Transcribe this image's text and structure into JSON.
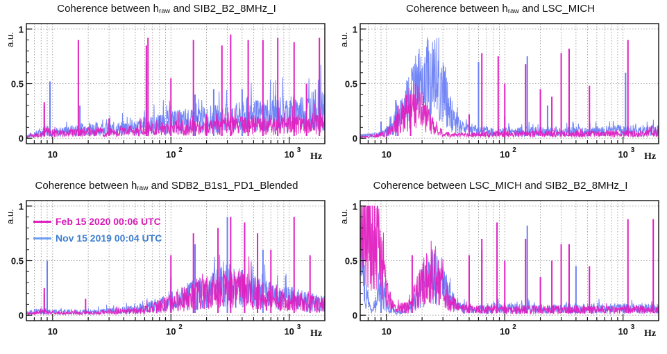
{
  "colors": {
    "feb": "#e020c0",
    "nov": "#6b7ff5",
    "grid": "#888888",
    "axis": "#111111"
  },
  "legend": [
    {
      "name": "feb",
      "label": "Feb 15 2020 00:06 UTC",
      "color": "#e020c0",
      "text_color": "#d81bb6"
    },
    {
      "name": "nov",
      "label": "Nov 15 2019 00:04 UTC",
      "color": "#6b9ff5",
      "text_color": "#3d7fd0"
    }
  ],
  "chart_data": [
    {
      "type": "line",
      "title_prefix": "Coherence between h",
      "title_sub": "raw",
      "title_suffix": " and SIB2_B2_8MHz_I",
      "ylabel": "a.u.",
      "xlabel": "Hz",
      "xscale": "log",
      "xlim": [
        6,
        2000
      ],
      "ylim": [
        -0.05,
        1.05
      ],
      "yticks": [
        "0",
        "0.5",
        "1"
      ],
      "xticks": [
        "10",
        "10",
        "10"
      ],
      "xtick_exp": [
        "",
        "2",
        "3"
      ],
      "grid": true,
      "series": [
        {
          "key": "nov",
          "x": [
            6,
            8,
            9,
            10,
            15,
            20,
            30,
            50,
            70,
            100,
            150,
            200,
            300,
            500,
            700,
            1000,
            1500,
            2000
          ],
          "y": [
            0.02,
            0.05,
            0.08,
            0.05,
            0.07,
            0.09,
            0.08,
            0.1,
            0.12,
            0.15,
            0.15,
            0.17,
            0.18,
            0.2,
            0.22,
            0.23,
            0.25,
            0.27
          ],
          "peaks": [
            [
              8.5,
              0.3
            ],
            [
              9.5,
              0.52
            ],
            [
              17,
              0.3
            ],
            [
              62,
              0.7
            ],
            [
              100,
              0.3
            ],
            [
              160,
              0.4
            ],
            [
              230,
              0.45
            ],
            [
              400,
              0.45
            ]
          ]
        },
        {
          "key": "feb",
          "x": [
            6,
            8,
            9,
            10,
            15,
            20,
            30,
            50,
            70,
            100,
            150,
            200,
            300,
            500,
            700,
            1000,
            1500,
            2000
          ],
          "y": [
            0.02,
            0.03,
            0.06,
            0.04,
            0.05,
            0.06,
            0.05,
            0.07,
            0.08,
            0.1,
            0.1,
            0.1,
            0.11,
            0.12,
            0.12,
            0.12,
            0.13,
            0.13
          ],
          "peaks": [
            [
              8.5,
              0.33
            ],
            [
              16.5,
              0.9
            ],
            [
              30,
              0.18
            ],
            [
              62,
              0.85
            ],
            [
              64,
              0.92
            ],
            [
              100,
              0.55
            ],
            [
              155,
              0.9
            ],
            [
              200,
              0.22
            ],
            [
              270,
              0.85
            ],
            [
              320,
              0.95
            ],
            [
              450,
              0.9
            ],
            [
              600,
              0.9
            ],
            [
              800,
              0.92
            ],
            [
              1100,
              0.88
            ],
            [
              1400,
              0.5
            ],
            [
              1800,
              0.92
            ]
          ]
        }
      ]
    },
    {
      "type": "line",
      "title_prefix": "Coherence between h",
      "title_sub": "raw",
      "title_suffix": " and LSC_MICH",
      "ylabel": "a.u.",
      "xlabel": "Hz",
      "xscale": "log",
      "xlim": [
        6,
        2000
      ],
      "ylim": [
        -0.05,
        1.05
      ],
      "yticks": [
        "0",
        "0.5",
        "1"
      ],
      "xticks": [
        "10",
        "10",
        "10"
      ],
      "xtick_exp": [
        "",
        "2",
        "3"
      ],
      "grid": true,
      "series": [
        {
          "key": "nov",
          "x": [
            6,
            8,
            10,
            12,
            15,
            18,
            20,
            25,
            28,
            30,
            35,
            40,
            50,
            70,
            100,
            200,
            500,
            1000,
            2000
          ],
          "y": [
            0.02,
            0.03,
            0.06,
            0.15,
            0.32,
            0.45,
            0.5,
            0.58,
            0.55,
            0.45,
            0.25,
            0.12,
            0.08,
            0.07,
            0.06,
            0.06,
            0.06,
            0.07,
            0.07
          ],
          "peaks": [
            [
              9,
              0.15
            ],
            [
              12,
              0.35
            ],
            [
              60,
              0.7
            ],
            [
              100,
              0.2
            ],
            [
              155,
              0.75
            ],
            [
              230,
              0.3
            ],
            [
              1050,
              0.6
            ]
          ]
        },
        {
          "key": "feb",
          "x": [
            6,
            8,
            10,
            12,
            15,
            17,
            20,
            23,
            26,
            30,
            35,
            50,
            100,
            200,
            500,
            1000,
            2000
          ],
          "y": [
            0.01,
            0.02,
            0.05,
            0.12,
            0.25,
            0.3,
            0.25,
            0.15,
            0.08,
            0.04,
            0.03,
            0.03,
            0.04,
            0.04,
            0.04,
            0.04,
            0.05
          ],
          "peaks": [
            [
              12.5,
              0.3
            ],
            [
              16,
              0.4
            ],
            [
              50,
              0.22
            ],
            [
              64,
              0.78
            ],
            [
              88,
              0.75
            ],
            [
              100,
              0.5
            ],
            [
              150,
              0.68
            ],
            [
              200,
              0.45
            ],
            [
              250,
              0.38
            ],
            [
              300,
              0.78
            ],
            [
              350,
              0.82
            ],
            [
              520,
              0.48
            ],
            [
              1100,
              0.9
            ]
          ]
        }
      ]
    },
    {
      "type": "line",
      "title_prefix": "Coherence between h",
      "title_sub": "raw",
      "title_suffix": " and SDB2_B1s1_PD1_Blended",
      "ylabel": "a.u.",
      "xlabel": "Hz",
      "xscale": "log",
      "xlim": [
        6,
        2000
      ],
      "ylim": [
        -0.05,
        1.05
      ],
      "yticks": [
        "0",
        "0.5",
        "1"
      ],
      "xticks": [
        "10",
        "10",
        "10"
      ],
      "xtick_exp": [
        "",
        "2",
        "3"
      ],
      "grid": true,
      "series": [
        {
          "key": "nov",
          "x": [
            6,
            8,
            10,
            20,
            30,
            50,
            70,
            100,
            150,
            200,
            300,
            400,
            600,
            1000,
            1500,
            2000
          ],
          "y": [
            0.02,
            0.04,
            0.03,
            0.03,
            0.04,
            0.05,
            0.08,
            0.12,
            0.18,
            0.22,
            0.27,
            0.25,
            0.2,
            0.15,
            0.12,
            0.1
          ],
          "peaks": [
            [
              8.5,
              0.2
            ],
            [
              9,
              0.5
            ],
            [
              100,
              0.35
            ],
            [
              160,
              0.65
            ],
            [
              300,
              0.9
            ],
            [
              600,
              0.6
            ]
          ]
        },
        {
          "key": "feb",
          "x": [
            6,
            8,
            10,
            20,
            30,
            50,
            70,
            100,
            150,
            200,
            300,
            400,
            600,
            1000,
            1500,
            2000
          ],
          "y": [
            0.01,
            0.03,
            0.02,
            0.02,
            0.03,
            0.04,
            0.07,
            0.11,
            0.17,
            0.2,
            0.25,
            0.23,
            0.18,
            0.13,
            0.11,
            0.09
          ],
          "peaks": [
            [
              8.5,
              0.25
            ],
            [
              19,
              0.15
            ],
            [
              100,
              0.55
            ],
            [
              155,
              0.75
            ],
            [
              250,
              0.8
            ],
            [
              320,
              0.9
            ],
            [
              420,
              0.85
            ],
            [
              540,
              0.75
            ],
            [
              700,
              0.6
            ],
            [
              1100,
              0.9
            ],
            [
              1500,
              0.55
            ]
          ]
        }
      ]
    },
    {
      "type": "line",
      "title_prefix": "Coherence between LSC_MICH and SIB2_B2_8MHz_I",
      "title_sub": "",
      "title_suffix": "",
      "ylabel": "a.u.",
      "xlabel": "Hz",
      "xscale": "log",
      "xlim": [
        6,
        2000
      ],
      "ylim": [
        -0.05,
        1.05
      ],
      "yticks": [
        "0",
        "0.5",
        "1"
      ],
      "xticks": [
        "10",
        "10",
        "10"
      ],
      "xtick_exp": [
        "",
        "2",
        "3"
      ],
      "grid": true,
      "series": [
        {
          "key": "nov",
          "x": [
            6,
            6.5,
            7,
            7.5,
            8,
            9,
            10,
            12,
            15,
            18,
            20,
            25,
            30,
            35,
            40,
            50,
            100,
            200,
            500,
            1000,
            2000
          ],
          "y": [
            0.55,
            0.3,
            0.15,
            0.05,
            0.08,
            0.3,
            0.1,
            0.02,
            0.05,
            0.15,
            0.25,
            0.38,
            0.3,
            0.15,
            0.07,
            0.05,
            0.06,
            0.06,
            0.06,
            0.06,
            0.06
          ],
          "peaks": [
            [
              9,
              0.3
            ],
            [
              64,
              0.6
            ],
            [
              155,
              0.82
            ],
            [
              400,
              0.45
            ]
          ]
        },
        {
          "key": "feb",
          "x": [
            6,
            6.5,
            7,
            7.5,
            8,
            8.5,
            9,
            10,
            12,
            15,
            18,
            20,
            25,
            28,
            32,
            40,
            50,
            100,
            200,
            500,
            1000,
            2000
          ],
          "y": [
            0.9,
            0.92,
            0.85,
            0.75,
            0.88,
            0.7,
            0.5,
            0.2,
            0.05,
            0.08,
            0.2,
            0.3,
            0.4,
            0.3,
            0.15,
            0.07,
            0.05,
            0.05,
            0.05,
            0.05,
            0.05,
            0.05
          ],
          "peaks": [
            [
              16.5,
              0.55
            ],
            [
              50,
              0.55
            ],
            [
              64,
              0.7
            ],
            [
              86,
              0.85
            ],
            [
              100,
              0.5
            ],
            [
              150,
              0.7
            ],
            [
              200,
              0.35
            ],
            [
              250,
              0.5
            ],
            [
              300,
              0.65
            ],
            [
              350,
              0.65
            ],
            [
              520,
              0.45
            ],
            [
              1100,
              0.88
            ],
            [
              1800,
              0.88
            ]
          ]
        }
      ]
    }
  ]
}
